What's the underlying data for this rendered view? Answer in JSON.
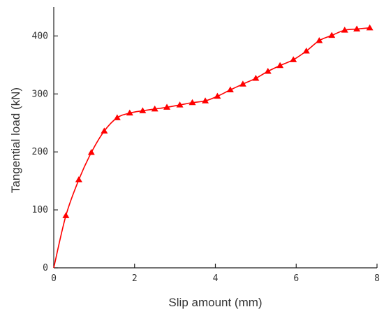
{
  "chart_data": {
    "type": "line",
    "title": "",
    "xlabel": "Slip amount (mm)",
    "ylabel": "Tangential load (kN)",
    "xlim": [
      0,
      8
    ],
    "ylim": [
      0,
      450
    ],
    "xticks": [
      0,
      2,
      4,
      6,
      8
    ],
    "yticks": [
      0,
      100,
      200,
      300,
      400
    ],
    "xtick_labels": [
      "0",
      "2",
      "4",
      "6",
      "8"
    ],
    "ytick_labels": [
      "0",
      "100",
      "200",
      "300",
      "400"
    ],
    "grid": false,
    "legend": false,
    "series": [
      {
        "color": "#ff0000",
        "marker": "triangle",
        "points": [
          {
            "x": 0.0,
            "y": 0
          },
          {
            "x": 0.3,
            "y": 90
          },
          {
            "x": 0.62,
            "y": 152
          },
          {
            "x": 0.93,
            "y": 199
          },
          {
            "x": 1.25,
            "y": 236
          },
          {
            "x": 1.57,
            "y": 259
          },
          {
            "x": 1.88,
            "y": 267
          },
          {
            "x": 2.2,
            "y": 271
          },
          {
            "x": 2.5,
            "y": 274
          },
          {
            "x": 2.8,
            "y": 277
          },
          {
            "x": 3.12,
            "y": 281
          },
          {
            "x": 3.43,
            "y": 285
          },
          {
            "x": 3.75,
            "y": 288
          },
          {
            "x": 4.05,
            "y": 296
          },
          {
            "x": 4.37,
            "y": 307
          },
          {
            "x": 4.68,
            "y": 317
          },
          {
            "x": 5.0,
            "y": 327
          },
          {
            "x": 5.3,
            "y": 339
          },
          {
            "x": 5.6,
            "y": 349
          },
          {
            "x": 5.93,
            "y": 359
          },
          {
            "x": 6.25,
            "y": 374
          },
          {
            "x": 6.57,
            "y": 392
          },
          {
            "x": 6.88,
            "y": 401
          },
          {
            "x": 7.2,
            "y": 410
          },
          {
            "x": 7.5,
            "y": 412
          },
          {
            "x": 7.82,
            "y": 414
          }
        ]
      }
    ]
  }
}
